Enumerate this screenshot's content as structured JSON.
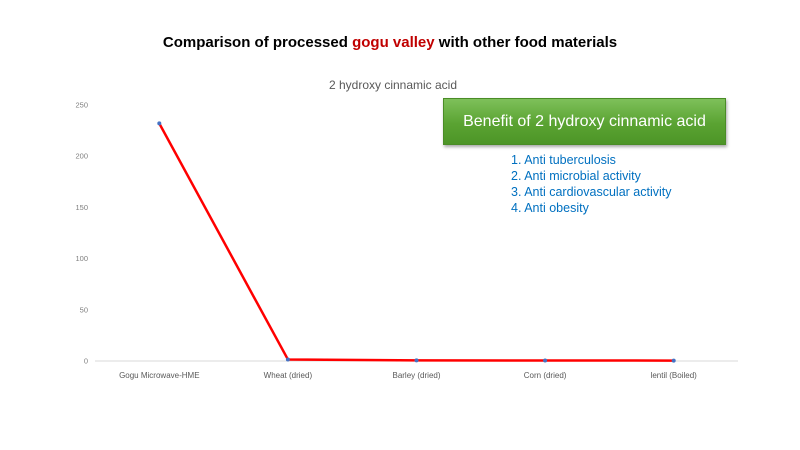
{
  "slide": {
    "title_prefix": "Comparison of processed ",
    "title_highlight": "gogu valley",
    "title_suffix": " with other food materials"
  },
  "benefits": {
    "heading": "Benefit of 2 hydroxy cinnamic acid",
    "items": [
      "1. Anti tuberculosis",
      "2. Anti microbial activity",
      "3. Anti cardiovascular activity",
      "4. Anti obesity"
    ]
  },
  "colors": {
    "line": "#ff0000",
    "marker": "#4472c4",
    "highlight": "#c00000",
    "benefit_text": "#0070c0",
    "box_fill": "#5aa332"
  },
  "chart_data": {
    "type": "line",
    "title": "2 hydroxy cinnamic acid",
    "xlabel": "",
    "ylabel": "",
    "categories": [
      "Gogu Microwave-HME",
      "Wheat (dried)",
      "Barley (dried)",
      "Corn (dried)",
      "lentil (Boiled)"
    ],
    "series": [
      {
        "values": [
          232,
          1.5,
          0.6,
          0.5,
          0.4
        ]
      }
    ],
    "ylim": [
      0,
      250
    ],
    "yticks": [
      0,
      50,
      100,
      150,
      200,
      250
    ],
    "grid": false,
    "legend": "none"
  }
}
